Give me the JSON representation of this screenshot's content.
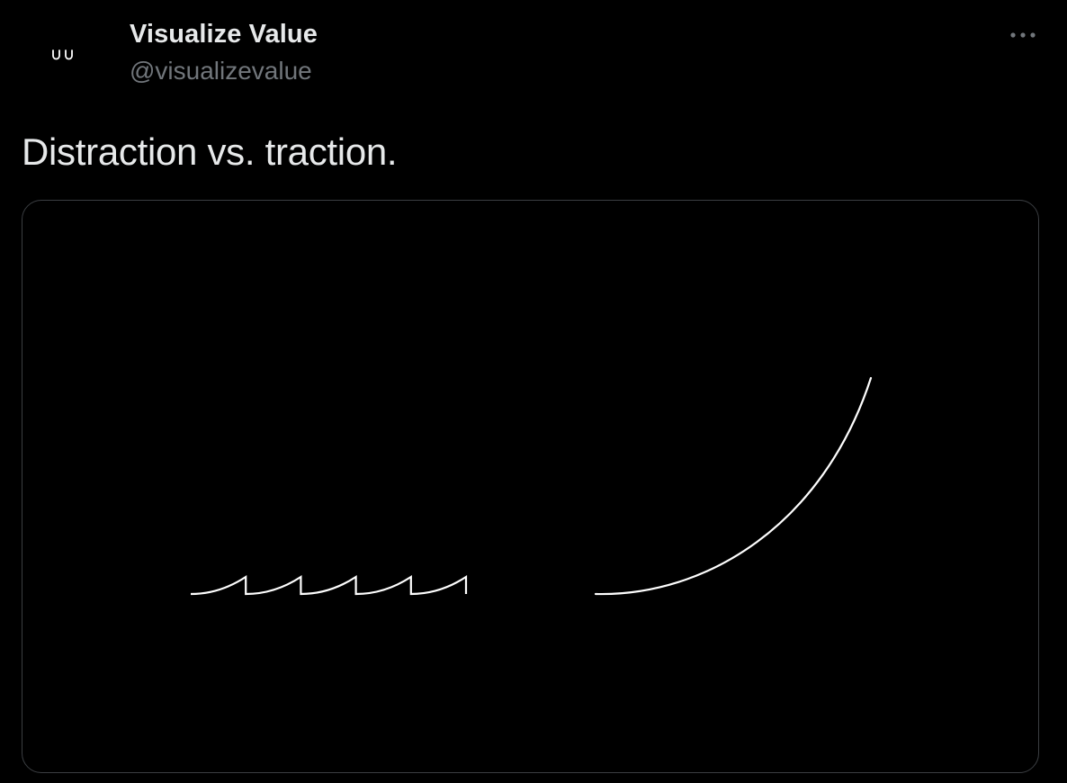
{
  "author": {
    "name": "Visualize Value",
    "handle": "@visualizevalue",
    "avatar_icon": "visualize-value-logo-icon"
  },
  "actions": {
    "more_icon": "more-horizontal-icon"
  },
  "tweet": {
    "text": "Distraction vs. traction."
  },
  "media": {
    "type": "illustration",
    "stroke_color": "#ffffff",
    "background_color": "#000000",
    "distraction_segments": 5
  },
  "colors": {
    "background": "#000000",
    "name": "#e7e9ea",
    "handle": "#71767b",
    "border": "#3b3e42"
  }
}
